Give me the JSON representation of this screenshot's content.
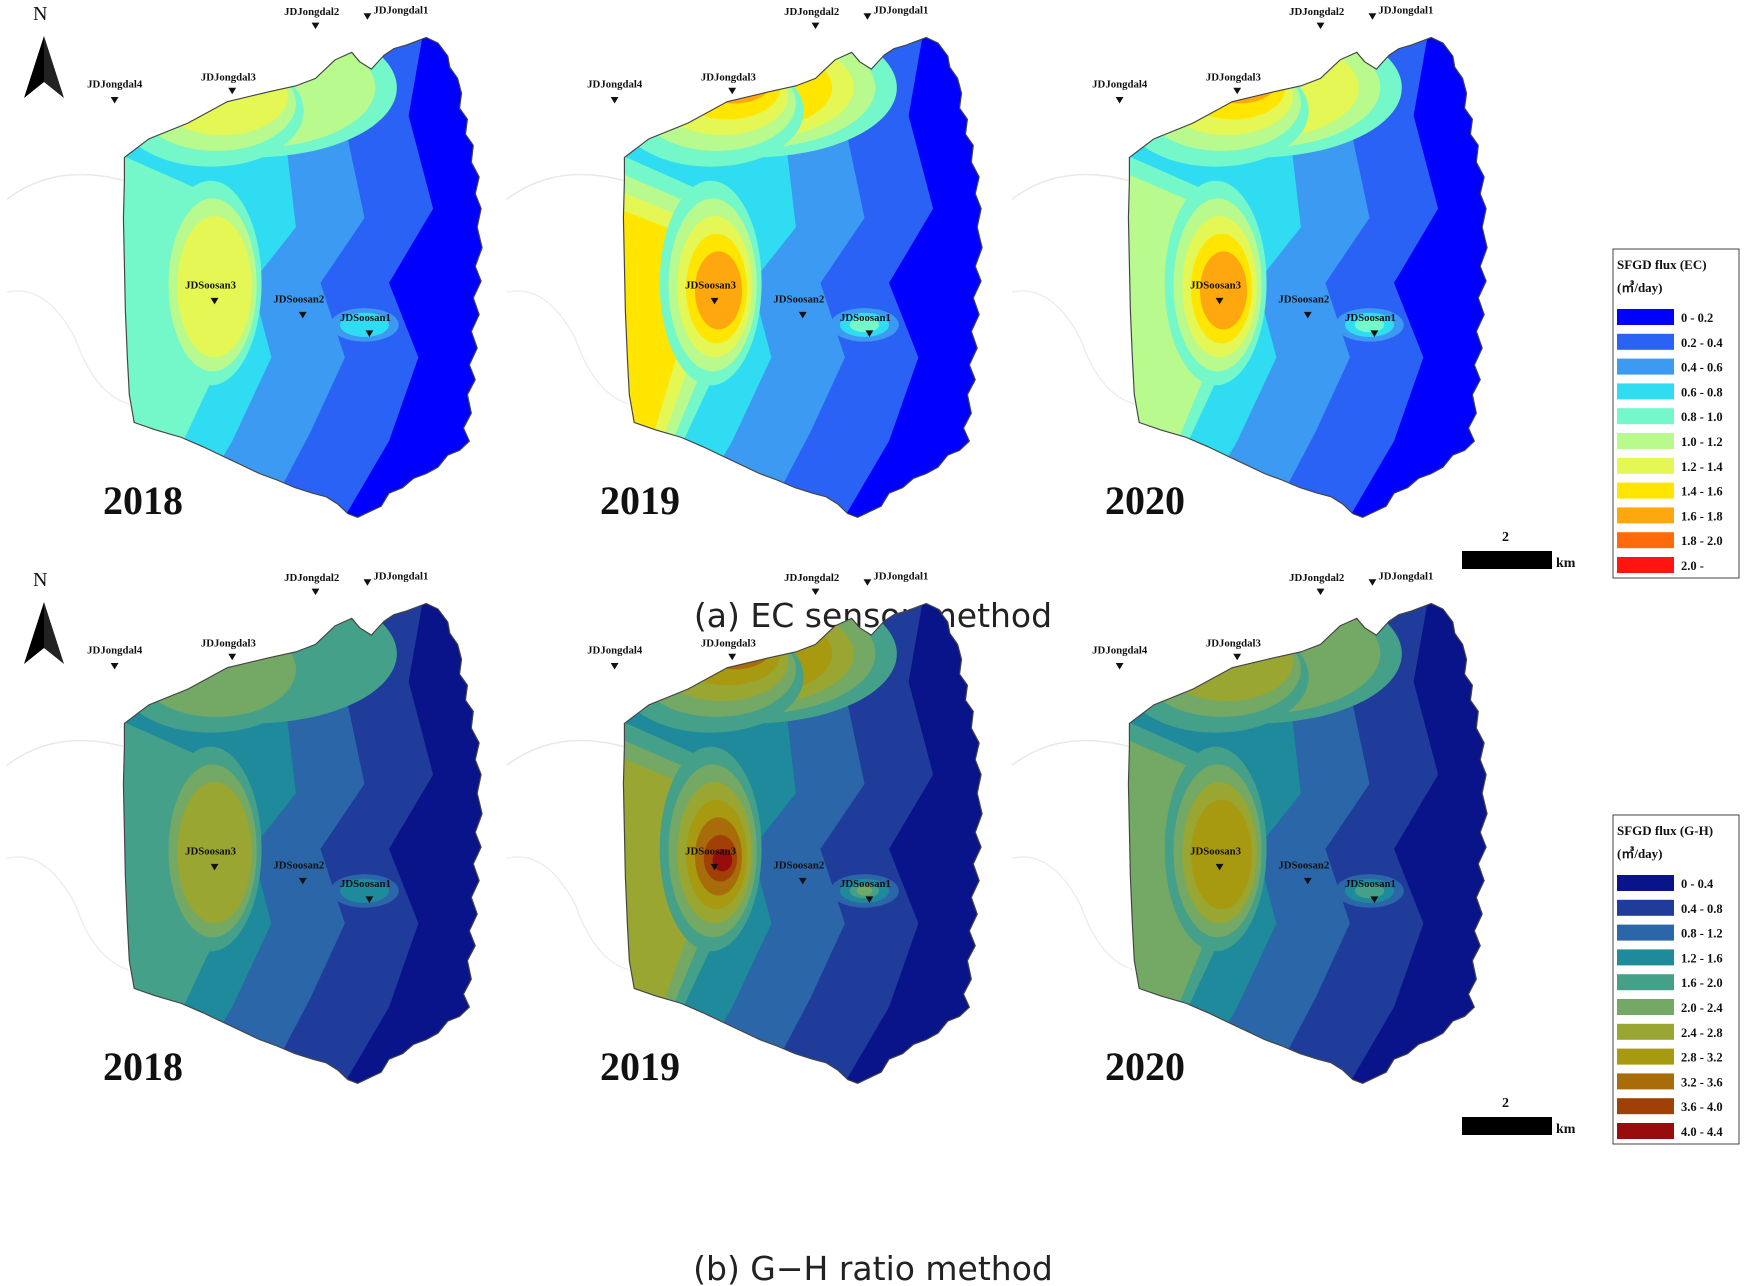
{
  "panels": [
    {
      "id": "a",
      "caption": "(a) EC sensor method",
      "legend": {
        "title": "SFGD flux (EC)",
        "unit": "(㎥/day)",
        "classes": [
          {
            "label": "0 - 0.2",
            "color": "#0000ff"
          },
          {
            "label": "0.2 - 0.4",
            "color": "#2a62f5"
          },
          {
            "label": "0.4 - 0.6",
            "color": "#3c9af3"
          },
          {
            "label": "0.6 - 0.8",
            "color": "#2fdcf2"
          },
          {
            "label": "0.8 - 1.0",
            "color": "#74f7c9"
          },
          {
            "label": "1.0 - 1.2",
            "color": "#b8fa8e"
          },
          {
            "label": "1.2 - 1.4",
            "color": "#e4f755"
          },
          {
            "label": "1.4 - 1.6",
            "color": "#ffe500"
          },
          {
            "label": "1.6 - 1.8",
            "color": "#ffa70f"
          },
          {
            "label": "1.8 - 2.0",
            "color": "#ff6a0a"
          },
          {
            "label": "2.0 -",
            "color": "#ff1410"
          }
        ]
      },
      "maps": [
        {
          "year": "2018",
          "levels": {
            "soosan3": 6,
            "nw": 6,
            "north": 5,
            "southwest": 4,
            "center": 3,
            "soosan1": 3
          }
        },
        {
          "year": "2019",
          "levels": {
            "soosan3": 8,
            "nw": 10,
            "north": 7,
            "southwest": 7,
            "center": 4,
            "soosan1": 4
          }
        },
        {
          "year": "2020",
          "levels": {
            "soosan3": 8,
            "nw": 9,
            "north": 6,
            "southwest": 5,
            "center": 3,
            "soosan1": 4
          }
        }
      ]
    },
    {
      "id": "b",
      "caption": "(b) G−H ratio method",
      "legend": {
        "title": "SFGD flux (G-H)",
        "unit": "(㎥/day)",
        "classes": [
          {
            "label": "0 - 0.4",
            "color": "#0a148a"
          },
          {
            "label": "0.4 - 0.8",
            "color": "#1f3c9a"
          },
          {
            "label": "0.8 - 1.2",
            "color": "#2a66a8"
          },
          {
            "label": "1.2 - 1.6",
            "color": "#1e8a9c"
          },
          {
            "label": "1.6 - 2.0",
            "color": "#45a08a"
          },
          {
            "label": "2.0 - 2.4",
            "color": "#74a865"
          },
          {
            "label": "2.4 - 2.8",
            "color": "#9aa632"
          },
          {
            "label": "2.8 - 3.2",
            "color": "#a89a10"
          },
          {
            "label": "3.2 - 3.6",
            "color": "#a86c0a"
          },
          {
            "label": "3.6 - 4.0",
            "color": "#a04004"
          },
          {
            "label": "4.0 - 4.4",
            "color": "#980c0c"
          }
        ]
      },
      "maps": [
        {
          "year": "2018",
          "levels": {
            "soosan3": 6,
            "nw": 5,
            "north": 4,
            "southwest": 4,
            "center": 3,
            "soosan1": 3
          }
        },
        {
          "year": "2019",
          "levels": {
            "soosan3": 10,
            "nw": 9,
            "north": 7,
            "southwest": 6,
            "center": 4,
            "soosan1": 5
          }
        },
        {
          "year": "2020",
          "levels": {
            "soosan3": 7,
            "nw": 6,
            "north": 5,
            "southwest": 5,
            "center": 3,
            "soosan1": 4
          }
        }
      ]
    }
  ],
  "stations": [
    {
      "name": "JDJongdal1"
    },
    {
      "name": "JDJongdal2"
    },
    {
      "name": "JDJongdal3"
    },
    {
      "name": "JDJongdal4"
    },
    {
      "name": "JDSoosan1"
    },
    {
      "name": "JDSoosan2"
    },
    {
      "name": "JDSoosan3"
    }
  ],
  "north_arrow": {
    "label": "N"
  },
  "scale_bar": {
    "value": "2",
    "unit": "km"
  }
}
